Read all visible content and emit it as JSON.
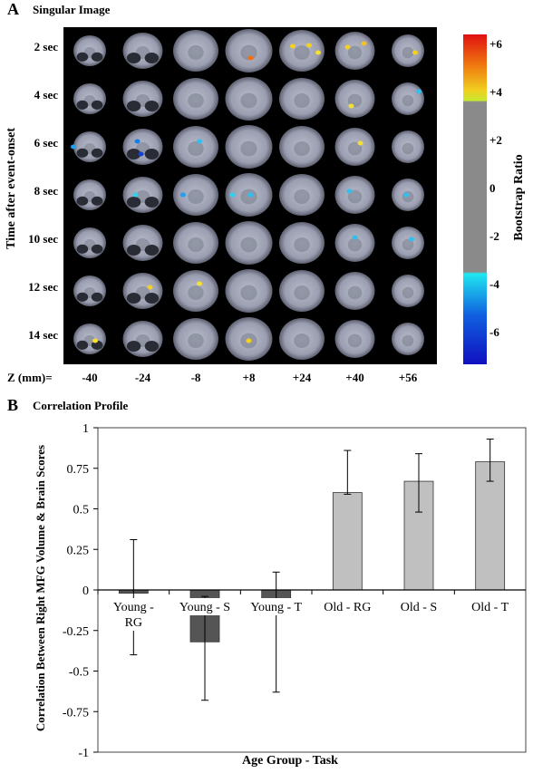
{
  "panel_a": {
    "letter": "A",
    "title": "Singular Image",
    "y_axis_label": "Time after event-onset",
    "rows": [
      "2 sec",
      "4 sec",
      "6 sec",
      "8 sec",
      "10 sec",
      "12 sec",
      "14 sec"
    ],
    "z_label": "Z (mm)=",
    "z_values": [
      "-40",
      "-24",
      "-8",
      "+8",
      "+24",
      "+40",
      "+56"
    ],
    "colorbar": {
      "label": "Bootstrap Ratio",
      "ticks": [
        "+6",
        "+4",
        "+2",
        "0",
        "-2",
        "-4",
        "-6"
      ],
      "colors": {
        "high": "#e01010",
        "mid_high": "#f5e020",
        "neutral": "#8a8a8a",
        "mid_low": "#20e8f0",
        "low": "#1010c0"
      }
    }
  },
  "panel_b": {
    "letter": "B",
    "title": "Correlation Profile"
  },
  "chart_data": {
    "type": "bar",
    "title": "Correlation Profile",
    "xlabel": "Age Group - Task",
    "ylabel": "Correlation Between Right MFG Volume & Brain Scores",
    "ylim": [
      -1,
      1
    ],
    "yticks": [
      "1",
      "0.75",
      "0.5",
      "0.25",
      "0",
      "-0.25",
      "-0.5",
      "-0.75",
      "-1"
    ],
    "categories": [
      "Young - RG",
      "Young - S",
      "Young - T",
      "Old - RG",
      "Old - S",
      "Old - T"
    ],
    "values": [
      -0.02,
      -0.32,
      -0.14,
      0.6,
      0.67,
      0.79
    ],
    "err_low": [
      -0.4,
      -0.68,
      -0.63,
      0.59,
      0.48,
      0.67
    ],
    "err_high": [
      0.31,
      -0.04,
      0.11,
      0.86,
      0.84,
      0.93
    ],
    "colors": {
      "young": "#555555",
      "old": "#c0c0c0"
    },
    "grid": false
  }
}
